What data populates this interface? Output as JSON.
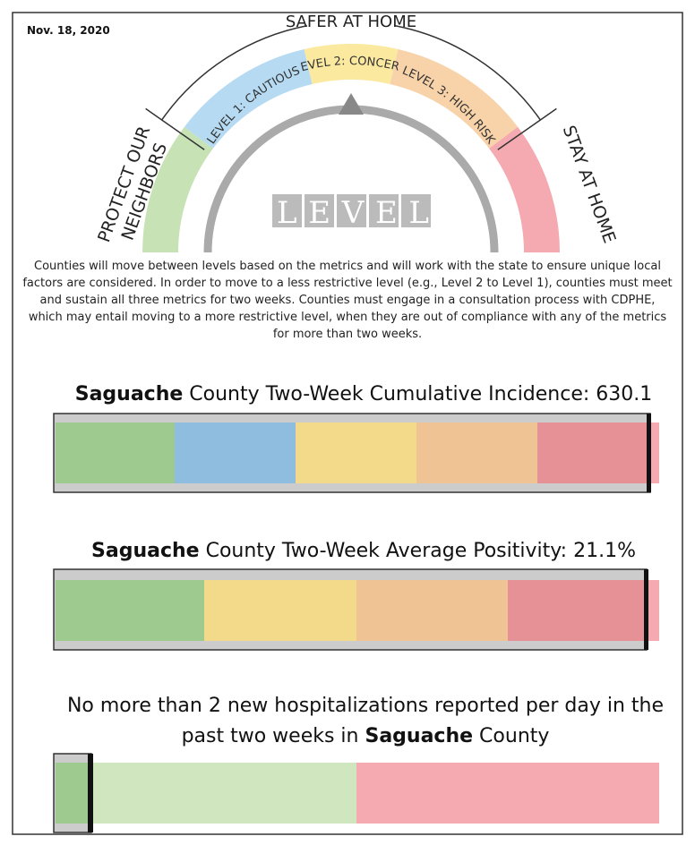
{
  "date": "Nov. 18, 2020",
  "dial": {
    "top_label": "SAFER AT HOME",
    "left_label": [
      "PROTECT OUR",
      "NEIGHBORS"
    ],
    "right_label": "STAY AT HOME",
    "levels": [
      "LEVEL 1: CAUTIOUS",
      "LEVEL 2: CONCERN",
      "LEVEL 3: HIGH RISK"
    ],
    "center_word": "LEVEL"
  },
  "description": "Counties will move between levels based on the metrics and will work with the state to ensure unique local factors are considered. In order to move to a less restrictive level (e.g., Level 2 to Level 1), counties must meet and sustain all three metrics for two weeks. Counties must engage in a consultation process with CDPHE, which may entail moving to a more restrictive level, when they are out of compliance with any of the metrics for more than two weeks.",
  "metrics": [
    {
      "county": "Saguache",
      "title": " County Two-Week Cumulative Incidence: 630.1"
    },
    {
      "county": "Saguache",
      "title": " County Two-Week Average Positivity: 21.1%"
    },
    {
      "line1": "No more than 2 new hospitalizations reported per day in the",
      "line2_pre": "past two weeks in ",
      "county": "Saguache",
      "line2_post": " County"
    }
  ]
}
